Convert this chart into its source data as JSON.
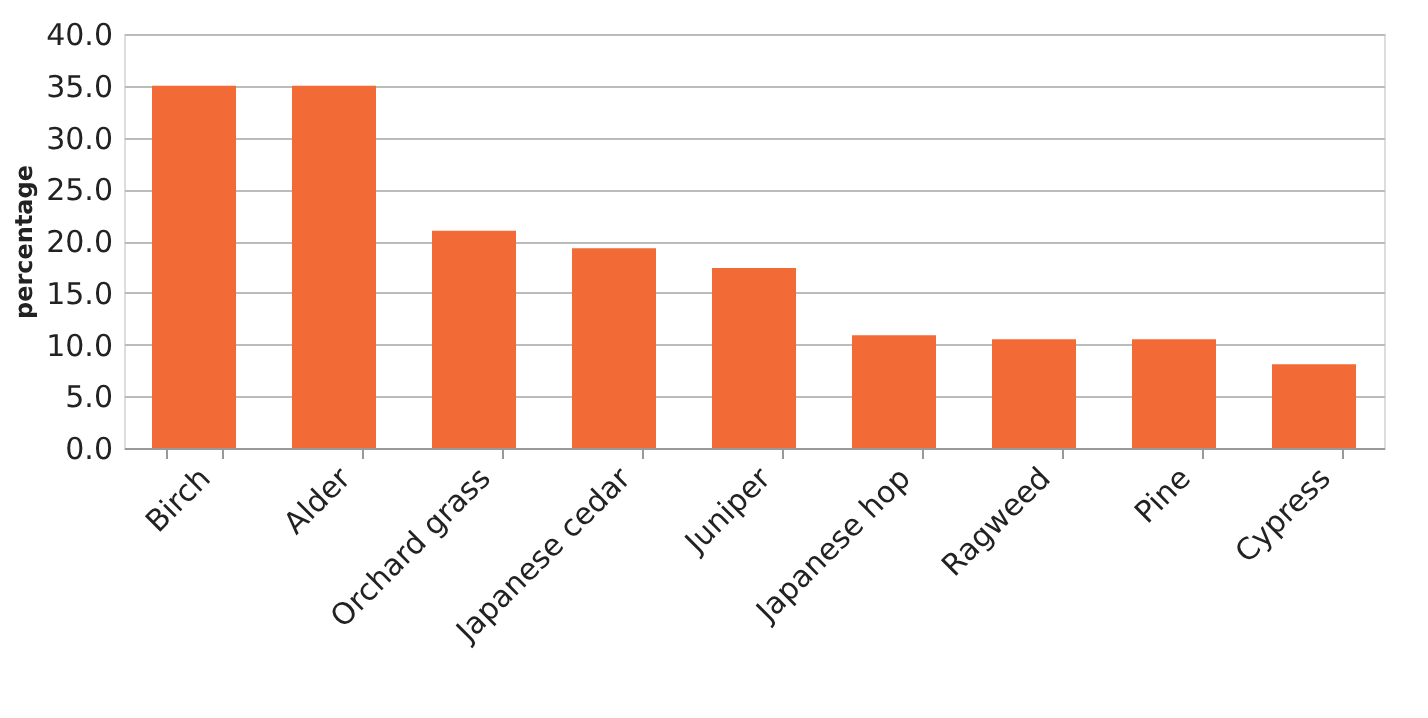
{
  "chart_data": {
    "type": "bar",
    "ylabel": "percentage",
    "categories": [
      "Birch",
      "Alder",
      "Orchard grass",
      "Japanese cedar",
      "Juniper",
      "Japanese hop",
      "Ragweed",
      "Pine",
      "Cypress"
    ],
    "values": [
      35.0,
      35.0,
      21.0,
      19.3,
      17.4,
      10.9,
      10.5,
      10.5,
      8.1
    ],
    "color": "#f26a35",
    "ylim": [
      0,
      40
    ],
    "yticks": [
      {
        "value": 0,
        "label": "0.0"
      },
      {
        "value": 5,
        "label": "5.0"
      },
      {
        "value": 10,
        "label": "10.0"
      },
      {
        "value": 15,
        "label": "15.0"
      },
      {
        "value": 20,
        "label": "20.0"
      },
      {
        "value": 25,
        "label": "25.0"
      },
      {
        "value": 30,
        "label": "30.0"
      },
      {
        "value": 35,
        "label": "35.0"
      },
      {
        "value": 40,
        "label": "40.0"
      }
    ],
    "grid": "y"
  }
}
